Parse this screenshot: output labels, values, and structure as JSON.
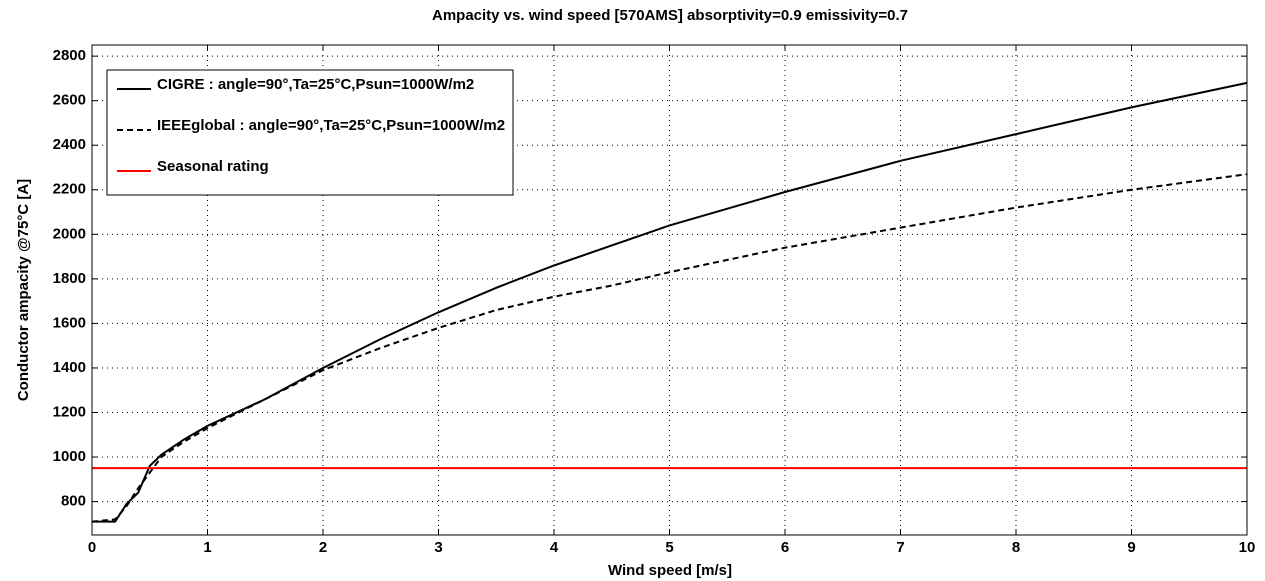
{
  "chart_data": {
    "type": "line",
    "title": "Ampacity vs. wind speed [570AMS] absorptivity=0.9 emissivity=0.7",
    "x_label": "Wind speed [m/s]",
    "y_label": "Conductor ampacity @75°C [A]",
    "x": [
      0,
      0.2,
      0.3,
      0.4,
      0.5,
      0.6,
      0.8,
      1,
      1.5,
      2,
      2.5,
      3,
      3.5,
      4,
      4.5,
      5,
      6,
      7,
      8,
      9,
      10
    ],
    "series": [
      {
        "name": "CIGRE : angle=90°,Ta=25°C,Psun=1000W/m2",
        "color": "#000000",
        "linestyle": "solid",
        "values": [
          710,
          710,
          790,
          840,
          960,
          1010,
          1080,
          1140,
          1260,
          1400,
          1530,
          1650,
          1760,
          1860,
          1950,
          2040,
          2190,
          2330,
          2450,
          2570,
          2680
        ]
      },
      {
        "name": "IEEEglobal : angle=90°,Ta=25°C,Psun=1000W/m2",
        "color": "#000000",
        "linestyle": "dashed",
        "values": [
          710,
          720,
          780,
          860,
          930,
          1000,
          1070,
          1130,
          1260,
          1390,
          1490,
          1580,
          1660,
          1720,
          1770,
          1830,
          1940,
          2030,
          2120,
          2200,
          2270
        ]
      },
      {
        "name": "Seasonal rating",
        "color": "#ff0000",
        "linestyle": "solid",
        "values": [
          950,
          950,
          950,
          950,
          950,
          950,
          950,
          950,
          950,
          950,
          950,
          950,
          950,
          950,
          950,
          950,
          950,
          950,
          950,
          950,
          950
        ]
      }
    ],
    "xlim": [
      0,
      10
    ],
    "xticks": [
      0,
      1,
      2,
      3,
      4,
      5,
      6,
      7,
      8,
      9,
      10
    ],
    "ylim": [
      650,
      2850
    ],
    "yticks": [
      800,
      1000,
      1200,
      1400,
      1600,
      1800,
      2000,
      2200,
      2400,
      2600,
      2800
    ],
    "grid": true,
    "legend": "upper left"
  }
}
